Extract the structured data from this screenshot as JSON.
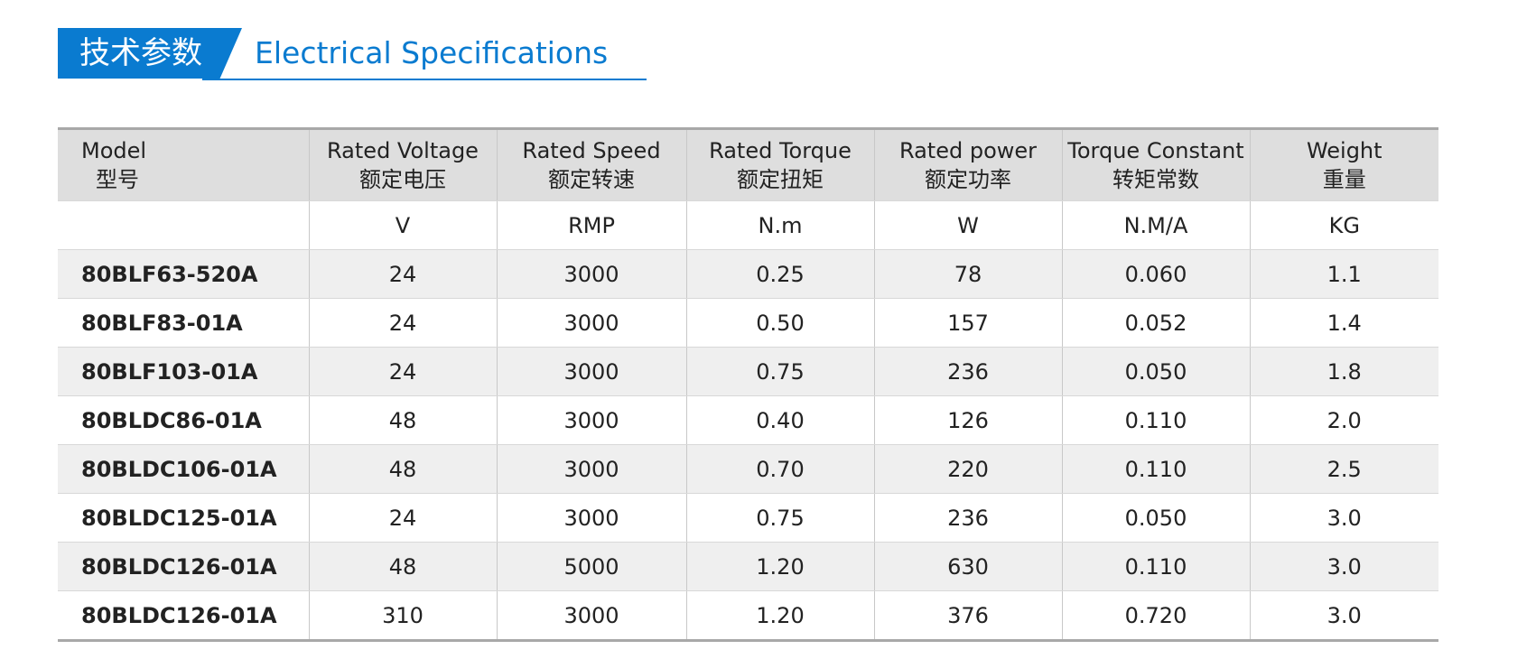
{
  "header": {
    "title_cn": "技术参数",
    "title_en": "Electrical Specifications"
  },
  "table": {
    "headers": [
      {
        "en": "Model",
        "cn": "型号"
      },
      {
        "en": "Rated Voltage",
        "cn": "额定电压"
      },
      {
        "en": "Rated Speed",
        "cn": "额定转速"
      },
      {
        "en": "Rated Torque",
        "cn": "额定扭矩"
      },
      {
        "en": "Rated power",
        "cn": "额定功率"
      },
      {
        "en": "Torque Constant",
        "cn": "转矩常数"
      },
      {
        "en": "Weight",
        "cn": "重量"
      }
    ],
    "units": [
      "V",
      "RMP",
      "N.m",
      "W",
      "N.M/A",
      "KG"
    ],
    "rows": [
      [
        "80BLF63-520A",
        "24",
        "3000",
        "0.25",
        "78",
        "0.060",
        "1.1"
      ],
      [
        "80BLF83-01A",
        "24",
        "3000",
        "0.50",
        "157",
        "0.052",
        "1.4"
      ],
      [
        "80BLF103-01A",
        "24",
        "3000",
        "0.75",
        "236",
        "0.050",
        "1.8"
      ],
      [
        "80BLDC86-01A",
        "48",
        "3000",
        "0.40",
        "126",
        "0.110",
        "2.0"
      ],
      [
        "80BLDC106-01A",
        "48",
        "3000",
        "0.70",
        "220",
        "0.110",
        "2.5"
      ],
      [
        "80BLDC125-01A",
        "24",
        "3000",
        "0.75",
        "236",
        "0.050",
        "3.0"
      ],
      [
        "80BLDC126-01A",
        "48",
        "5000",
        "1.20",
        "630",
        "0.110",
        "3.0"
      ],
      [
        "80BLDC126-01A",
        "310",
        "3000",
        "1.20",
        "376",
        "0.720",
        "3.0"
      ]
    ]
  }
}
